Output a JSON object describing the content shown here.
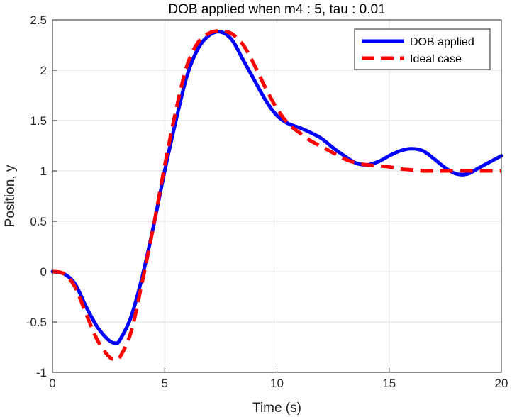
{
  "chart_data": {
    "type": "line",
    "title": "DOB applied when m4 : 5, tau : 0.01",
    "xlabel": "Time (s)",
    "ylabel": "Position, y",
    "xlim": [
      0,
      20
    ],
    "ylim": [
      -1,
      2.5
    ],
    "xticks": [
      "0",
      "5",
      "10",
      "15",
      "20"
    ],
    "yticks": [
      "-1",
      "-0.5",
      "0",
      "0.5",
      "1",
      "1.5",
      "2",
      "2.5"
    ],
    "grid": true,
    "legend_position": "top-right",
    "series": [
      {
        "name": "DOB applied",
        "color": "#0000ff",
        "style": "solid",
        "x": [
          0,
          0.5,
          1,
          1.5,
          2,
          2.5,
          2.8,
          3,
          3.5,
          4,
          4.5,
          5,
          5.5,
          6,
          6.5,
          7,
          7.5,
          8,
          8.5,
          9,
          9.5,
          10,
          10.5,
          11,
          11.5,
          12,
          12.5,
          13,
          13.5,
          14,
          14.5,
          15,
          15.5,
          16,
          16.5,
          17,
          17.5,
          18,
          18.5,
          19,
          19.5,
          20
        ],
        "y": [
          0,
          -0.02,
          -0.12,
          -0.35,
          -0.55,
          -0.68,
          -0.71,
          -0.68,
          -0.45,
          -0.05,
          0.45,
          1.0,
          1.5,
          1.95,
          2.22,
          2.35,
          2.38,
          2.3,
          2.1,
          1.9,
          1.7,
          1.55,
          1.47,
          1.43,
          1.38,
          1.32,
          1.23,
          1.15,
          1.08,
          1.06,
          1.09,
          1.15,
          1.2,
          1.22,
          1.2,
          1.12,
          1.03,
          0.97,
          0.97,
          1.03,
          1.09,
          1.15
        ]
      },
      {
        "name": "Ideal case",
        "color": "#ff0000",
        "style": "dashed",
        "x": [
          0,
          0.5,
          1,
          1.5,
          2,
          2.5,
          2.8,
          3,
          3.5,
          4,
          4.5,
          5,
          5.5,
          6,
          6.5,
          7,
          7.5,
          8,
          8.5,
          9,
          9.5,
          10,
          10.5,
          11,
          11.5,
          12,
          12.5,
          13,
          13.5,
          14,
          14.5,
          15,
          15.5,
          16,
          16.5,
          17,
          17.5,
          18,
          18.5,
          19,
          19.5,
          20
        ],
        "y": [
          0,
          -0.02,
          -0.15,
          -0.42,
          -0.68,
          -0.84,
          -0.87,
          -0.85,
          -0.6,
          -0.1,
          0.45,
          1.05,
          1.6,
          2.05,
          2.28,
          2.37,
          2.39,
          2.36,
          2.25,
          2.05,
          1.82,
          1.62,
          1.47,
          1.38,
          1.3,
          1.24,
          1.18,
          1.12,
          1.08,
          1.06,
          1.05,
          1.04,
          1.02,
          1.01,
          1.0,
          1.0,
          1.0,
          1.0,
          1.0,
          1.0,
          1.0,
          1.0
        ]
      }
    ]
  }
}
